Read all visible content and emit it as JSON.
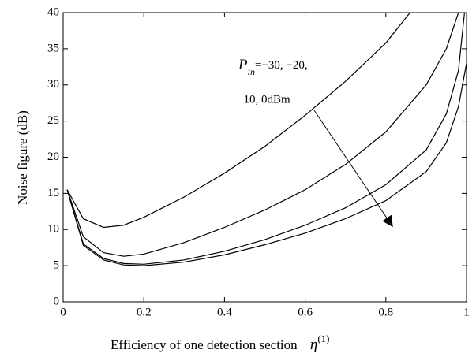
{
  "chart_data": {
    "type": "line",
    "y_label": "Noise figure (dB)",
    "x_label": "Efficiency of one detection section",
    "x_label_symbol": "η",
    "x_label_superscript": "(1)",
    "annotation": {
      "symbol": "P",
      "subscript": "in",
      "line1": "=−30, −20,",
      "line2": "−10, 0dBm"
    },
    "xlim": [
      0,
      1
    ],
    "xticks": [
      0,
      0.2,
      0.4,
      0.6,
      0.8,
      1
    ],
    "ylim": [
      0,
      40
    ],
    "yticks": [
      0,
      5,
      10,
      15,
      20,
      25,
      30,
      35,
      40
    ],
    "series": [
      {
        "color": "#000000",
        "x": [
          0.01,
          0.05,
          0.1,
          0.15,
          0.2,
          0.3,
          0.4,
          0.5,
          0.6,
          0.7,
          0.8,
          0.86
        ],
        "values": [
          15.5,
          11.5,
          10.3,
          10.6,
          11.7,
          14.5,
          17.8,
          21.5,
          25.8,
          30.5,
          35.8,
          40
        ]
      },
      {
        "color": "#000000",
        "x": [
          0.01,
          0.05,
          0.1,
          0.15,
          0.2,
          0.3,
          0.4,
          0.5,
          0.6,
          0.7,
          0.8,
          0.9,
          0.95,
          0.98
        ],
        "values": [
          15.5,
          9,
          6.8,
          6.3,
          6.6,
          8.2,
          10.3,
          12.7,
          15.5,
          19,
          23.5,
          30,
          35,
          40
        ]
      },
      {
        "color": "#000000",
        "x": [
          0.01,
          0.05,
          0.1,
          0.15,
          0.2,
          0.3,
          0.4,
          0.5,
          0.6,
          0.7,
          0.8,
          0.9,
          0.95,
          0.98,
          0.995
        ],
        "values": [
          15.5,
          8,
          6,
          5.3,
          5.2,
          5.8,
          7,
          8.6,
          10.6,
          13,
          16.2,
          21,
          26,
          32,
          40
        ]
      },
      {
        "color": "#000000",
        "x": [
          0.01,
          0.05,
          0.1,
          0.15,
          0.2,
          0.3,
          0.4,
          0.5,
          0.6,
          0.7,
          0.8,
          0.9,
          0.95,
          0.98,
          1
        ],
        "values": [
          15.5,
          7.8,
          5.8,
          5.1,
          5,
          5.5,
          6.5,
          7.9,
          9.5,
          11.5,
          14,
          18,
          22,
          27,
          33
        ]
      }
    ]
  }
}
